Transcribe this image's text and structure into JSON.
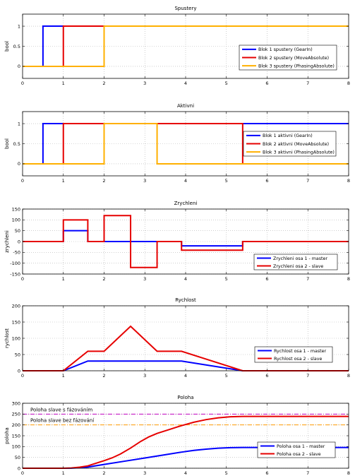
{
  "chart_data": [
    {
      "type": "line",
      "title": "Spustery",
      "xlabel": "",
      "ylabel": "bool",
      "xlim": [
        0,
        8
      ],
      "ylim": [
        -0.3,
        1.3
      ],
      "xticks": [
        0,
        1,
        2,
        3,
        4,
        5,
        6,
        7,
        8
      ],
      "yticks": [
        0,
        0.5,
        1
      ],
      "ytick_labels": [
        "0",
        "0.5",
        "1"
      ],
      "grid": true,
      "legend_position": "right",
      "series": [
        {
          "name": "Blok 1 spustery (GearIn)",
          "color": "#0000ff",
          "x": [
            0,
            0.5,
            0.5,
            8
          ],
          "y": [
            0,
            0,
            1,
            1
          ]
        },
        {
          "name": "Blok 2 spustery (MoveAbsolute)",
          "color": "#e60000",
          "x": [
            0,
            1,
            1,
            8
          ],
          "y": [
            0,
            0,
            1,
            1
          ]
        },
        {
          "name": "Blok 3 spustery (PhasingAbsolute)",
          "color": "#ffb000",
          "x": [
            0,
            2,
            2,
            8
          ],
          "y": [
            0,
            0,
            1,
            1
          ]
        }
      ]
    },
    {
      "type": "line",
      "title": "Aktivni",
      "xlabel": "",
      "ylabel": "bool",
      "xlim": [
        0,
        8
      ],
      "ylim": [
        -0.3,
        1.3
      ],
      "xticks": [
        0,
        1,
        2,
        3,
        4,
        5,
        6,
        7,
        8
      ],
      "yticks": [
        0,
        0.5,
        1
      ],
      "ytick_labels": [
        "0",
        "0.5",
        "1"
      ],
      "grid": true,
      "legend_position": "right",
      "series": [
        {
          "name": "Blok 1 aktivni (GearIn)",
          "color": "#0000ff",
          "x": [
            0,
            0.5,
            0.5,
            8
          ],
          "y": [
            0,
            0,
            1,
            1
          ]
        },
        {
          "name": "Blok 2 aktivni (MoveAbsolute)",
          "color": "#e60000",
          "x": [
            0,
            1,
            1,
            5.4,
            5.4,
            8
          ],
          "y": [
            0,
            0,
            1,
            1,
            0,
            0
          ]
        },
        {
          "name": "Blok 3 aktivni (PhasingAbsolute)",
          "color": "#ffb000",
          "x": [
            0,
            2,
            2,
            3.3,
            3.3,
            8
          ],
          "y": [
            0,
            0,
            1,
            1,
            0,
            0
          ]
        }
      ]
    },
    {
      "type": "line",
      "title": "Zrychleni",
      "xlabel": "",
      "ylabel": "zrychleni",
      "xlim": [
        0,
        8
      ],
      "ylim": [
        -150,
        150
      ],
      "xticks": [
        0,
        1,
        2,
        3,
        4,
        5,
        6,
        7,
        8
      ],
      "yticks": [
        -150,
        -100,
        -50,
        0,
        50,
        100,
        150
      ],
      "ytick_labels": [
        "-150",
        "-100",
        "-50",
        "0",
        "50",
        "100",
        "150"
      ],
      "grid": true,
      "legend_position": "bottom-right",
      "series": [
        {
          "name": "Zrychleni osa 1 - master",
          "color": "#0000ff",
          "x": [
            0,
            1,
            1,
            1.6,
            1.6,
            3.9,
            3.9,
            5.4,
            5.4,
            8
          ],
          "y": [
            0,
            0,
            50,
            50,
            0,
            0,
            -20,
            -20,
            0,
            0
          ]
        },
        {
          "name": "Zrychleni osa 2 - slave",
          "color": "#e60000",
          "x": [
            0,
            1,
            1,
            1.6,
            1.6,
            2,
            2,
            2.65,
            2.65,
            3.3,
            3.3,
            3.9,
            3.9,
            5.4,
            5.4,
            8
          ],
          "y": [
            0,
            0,
            100,
            100,
            0,
            0,
            120,
            120,
            -120,
            -120,
            0,
            0,
            -40,
            -40,
            0,
            0
          ]
        }
      ]
    },
    {
      "type": "line",
      "title": "Rychlost",
      "xlabel": "",
      "ylabel": "rychlost",
      "xlim": [
        0,
        8
      ],
      "ylim": [
        0,
        200
      ],
      "xticks": [
        0,
        1,
        2,
        3,
        4,
        5,
        6,
        7,
        8
      ],
      "yticks": [
        0,
        50,
        100,
        150,
        200
      ],
      "ytick_labels": [
        "0",
        "50",
        "100",
        "150",
        "200"
      ],
      "grid": true,
      "legend_position": "bottom-right",
      "series": [
        {
          "name": "Rychlost osa 1 - master",
          "color": "#0000ff",
          "x": [
            0,
            1,
            1.6,
            3.9,
            5.4,
            8
          ],
          "y": [
            0,
            0,
            30,
            30,
            0,
            0
          ]
        },
        {
          "name": "Rychlost osa 2 - slave",
          "color": "#e60000",
          "x": [
            0,
            1,
            1.6,
            2,
            2.65,
            3.3,
            3.9,
            5.4,
            8
          ],
          "y": [
            0,
            0,
            60,
            60,
            137,
            60,
            60,
            0,
            0
          ]
        }
      ]
    },
    {
      "type": "line",
      "title": "Poloha",
      "xlabel": "",
      "ylabel": "poloha",
      "xlim": [
        0,
        8
      ],
      "ylim": [
        0,
        300
      ],
      "xticks": [
        0,
        1,
        2,
        3,
        4,
        5,
        6,
        7,
        8
      ],
      "yticks": [
        0,
        50,
        100,
        150,
        200,
        250,
        300
      ],
      "ytick_labels": [
        "0",
        "50",
        "100",
        "150",
        "200",
        "250",
        "300"
      ],
      "grid": true,
      "legend_position": "bottom-right",
      "series": [
        {
          "name": "Poloha osa 1 - master",
          "color": "#0000ff",
          "x": [
            0,
            1,
            1.2,
            1.4,
            1.6,
            2,
            2.5,
            3,
            3.5,
            3.9,
            4.2,
            4.5,
            4.8,
            5.1,
            5.4,
            6,
            7,
            8
          ],
          "y": [
            0,
            0,
            0.6,
            2.4,
            5.4,
            17.4,
            32.4,
            47.4,
            62.4,
            74.4,
            82.2,
            88.2,
            92.4,
            95,
            95.7,
            95.7,
            95.7,
            95.7
          ]
        },
        {
          "name": "Poloha osa 2 - slave",
          "color": "#e60000",
          "x": [
            0,
            1,
            1.2,
            1.4,
            1.6,
            2,
            2.2,
            2.4,
            2.65,
            2.9,
            3.1,
            3.3,
            3.6,
            3.9,
            4.2,
            4.5,
            4.8,
            5.1,
            5.4,
            6,
            7,
            8
          ],
          "y": [
            0,
            0,
            1.2,
            4.8,
            10.8,
            34.8,
            48.2,
            65.7,
            93.1,
            124,
            144.9,
            160.8,
            178.8,
            196.8,
            212.4,
            224.4,
            232.8,
            237.6,
            239.4,
            239.4,
            239.4,
            239.4
          ]
        }
      ],
      "reference_lines": [
        {
          "label": "Poloha slave s fázováním",
          "y": 250,
          "color": "#c000c0",
          "style": "dashdot"
        },
        {
          "label": "Poloha slave bez fázování",
          "y": 200,
          "color": "#ff9900",
          "style": "dashdot"
        }
      ]
    }
  ]
}
